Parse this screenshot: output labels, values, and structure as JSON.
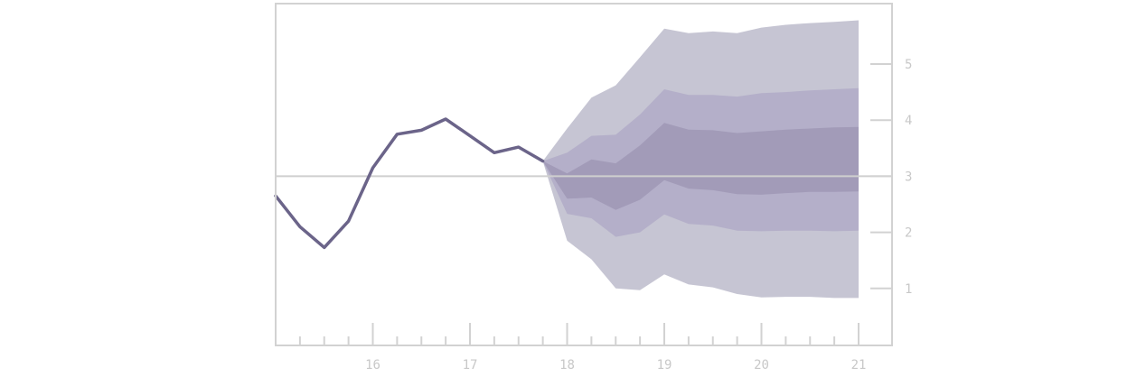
{
  "chart_data": {
    "type": "area",
    "title": "",
    "xlabel": "",
    "ylabel": "",
    "xlim": [
      15.0,
      21.3
    ],
    "ylim": [
      -0.0,
      6.0
    ],
    "x_ticks": [
      "16",
      "17",
      "18",
      "19",
      "20",
      "21"
    ],
    "y_ticks": [
      "1",
      "2",
      "3",
      "4",
      "5"
    ],
    "reference_line": 3,
    "grid": false,
    "colors": {
      "line": "#6b6489",
      "outer_band": "#c6c5d3",
      "middle_band": "#b4afc9",
      "inner_band": "#a29bb8",
      "axis": "#d2d2d2",
      "reference": "#cfcfcf",
      "tick_text": "#c8c8c8"
    },
    "series": [
      {
        "kind": "outturn",
        "x": [
          15.0,
          15.25,
          15.5,
          15.75,
          16.0,
          16.25,
          16.5,
          16.75,
          17.0,
          17.25,
          17.5,
          17.75
        ],
        "values": [
          2.65,
          2.1,
          1.73,
          2.2,
          3.15,
          3.75,
          3.82,
          4.02,
          3.72,
          3.42,
          3.52,
          3.27
        ]
      }
    ],
    "fan": {
      "x": [
        17.75,
        18.0,
        18.25,
        18.5,
        18.75,
        19.0,
        19.25,
        19.5,
        19.75,
        20.0,
        20.25,
        20.5,
        20.75,
        21.0
      ],
      "bands": [
        {
          "name": "outer",
          "upper": [
            3.27,
            3.85,
            4.4,
            4.62,
            5.12,
            5.63,
            5.55,
            5.58,
            5.55,
            5.65,
            5.7,
            5.73,
            5.75,
            5.78
          ],
          "lower": [
            3.27,
            1.85,
            1.52,
            1.0,
            0.97,
            1.25,
            1.07,
            1.02,
            0.9,
            0.84,
            0.85,
            0.85,
            0.83,
            0.83
          ]
        },
        {
          "name": "middle",
          "upper": [
            3.27,
            3.42,
            3.72,
            3.74,
            4.1,
            4.55,
            4.45,
            4.45,
            4.42,
            4.48,
            4.5,
            4.53,
            4.55,
            4.57
          ],
          "lower": [
            3.27,
            2.33,
            2.25,
            1.92,
            2.0,
            2.32,
            2.15,
            2.12,
            2.03,
            2.02,
            2.03,
            2.03,
            2.02,
            2.03
          ]
        },
        {
          "name": "inner",
          "upper": [
            3.27,
            3.05,
            3.3,
            3.23,
            3.55,
            3.95,
            3.83,
            3.82,
            3.77,
            3.8,
            3.83,
            3.85,
            3.87,
            3.88
          ],
          "lower": [
            3.27,
            2.6,
            2.62,
            2.4,
            2.58,
            2.93,
            2.78,
            2.75,
            2.68,
            2.67,
            2.7,
            2.72,
            2.72,
            2.73
          ]
        }
      ]
    }
  }
}
